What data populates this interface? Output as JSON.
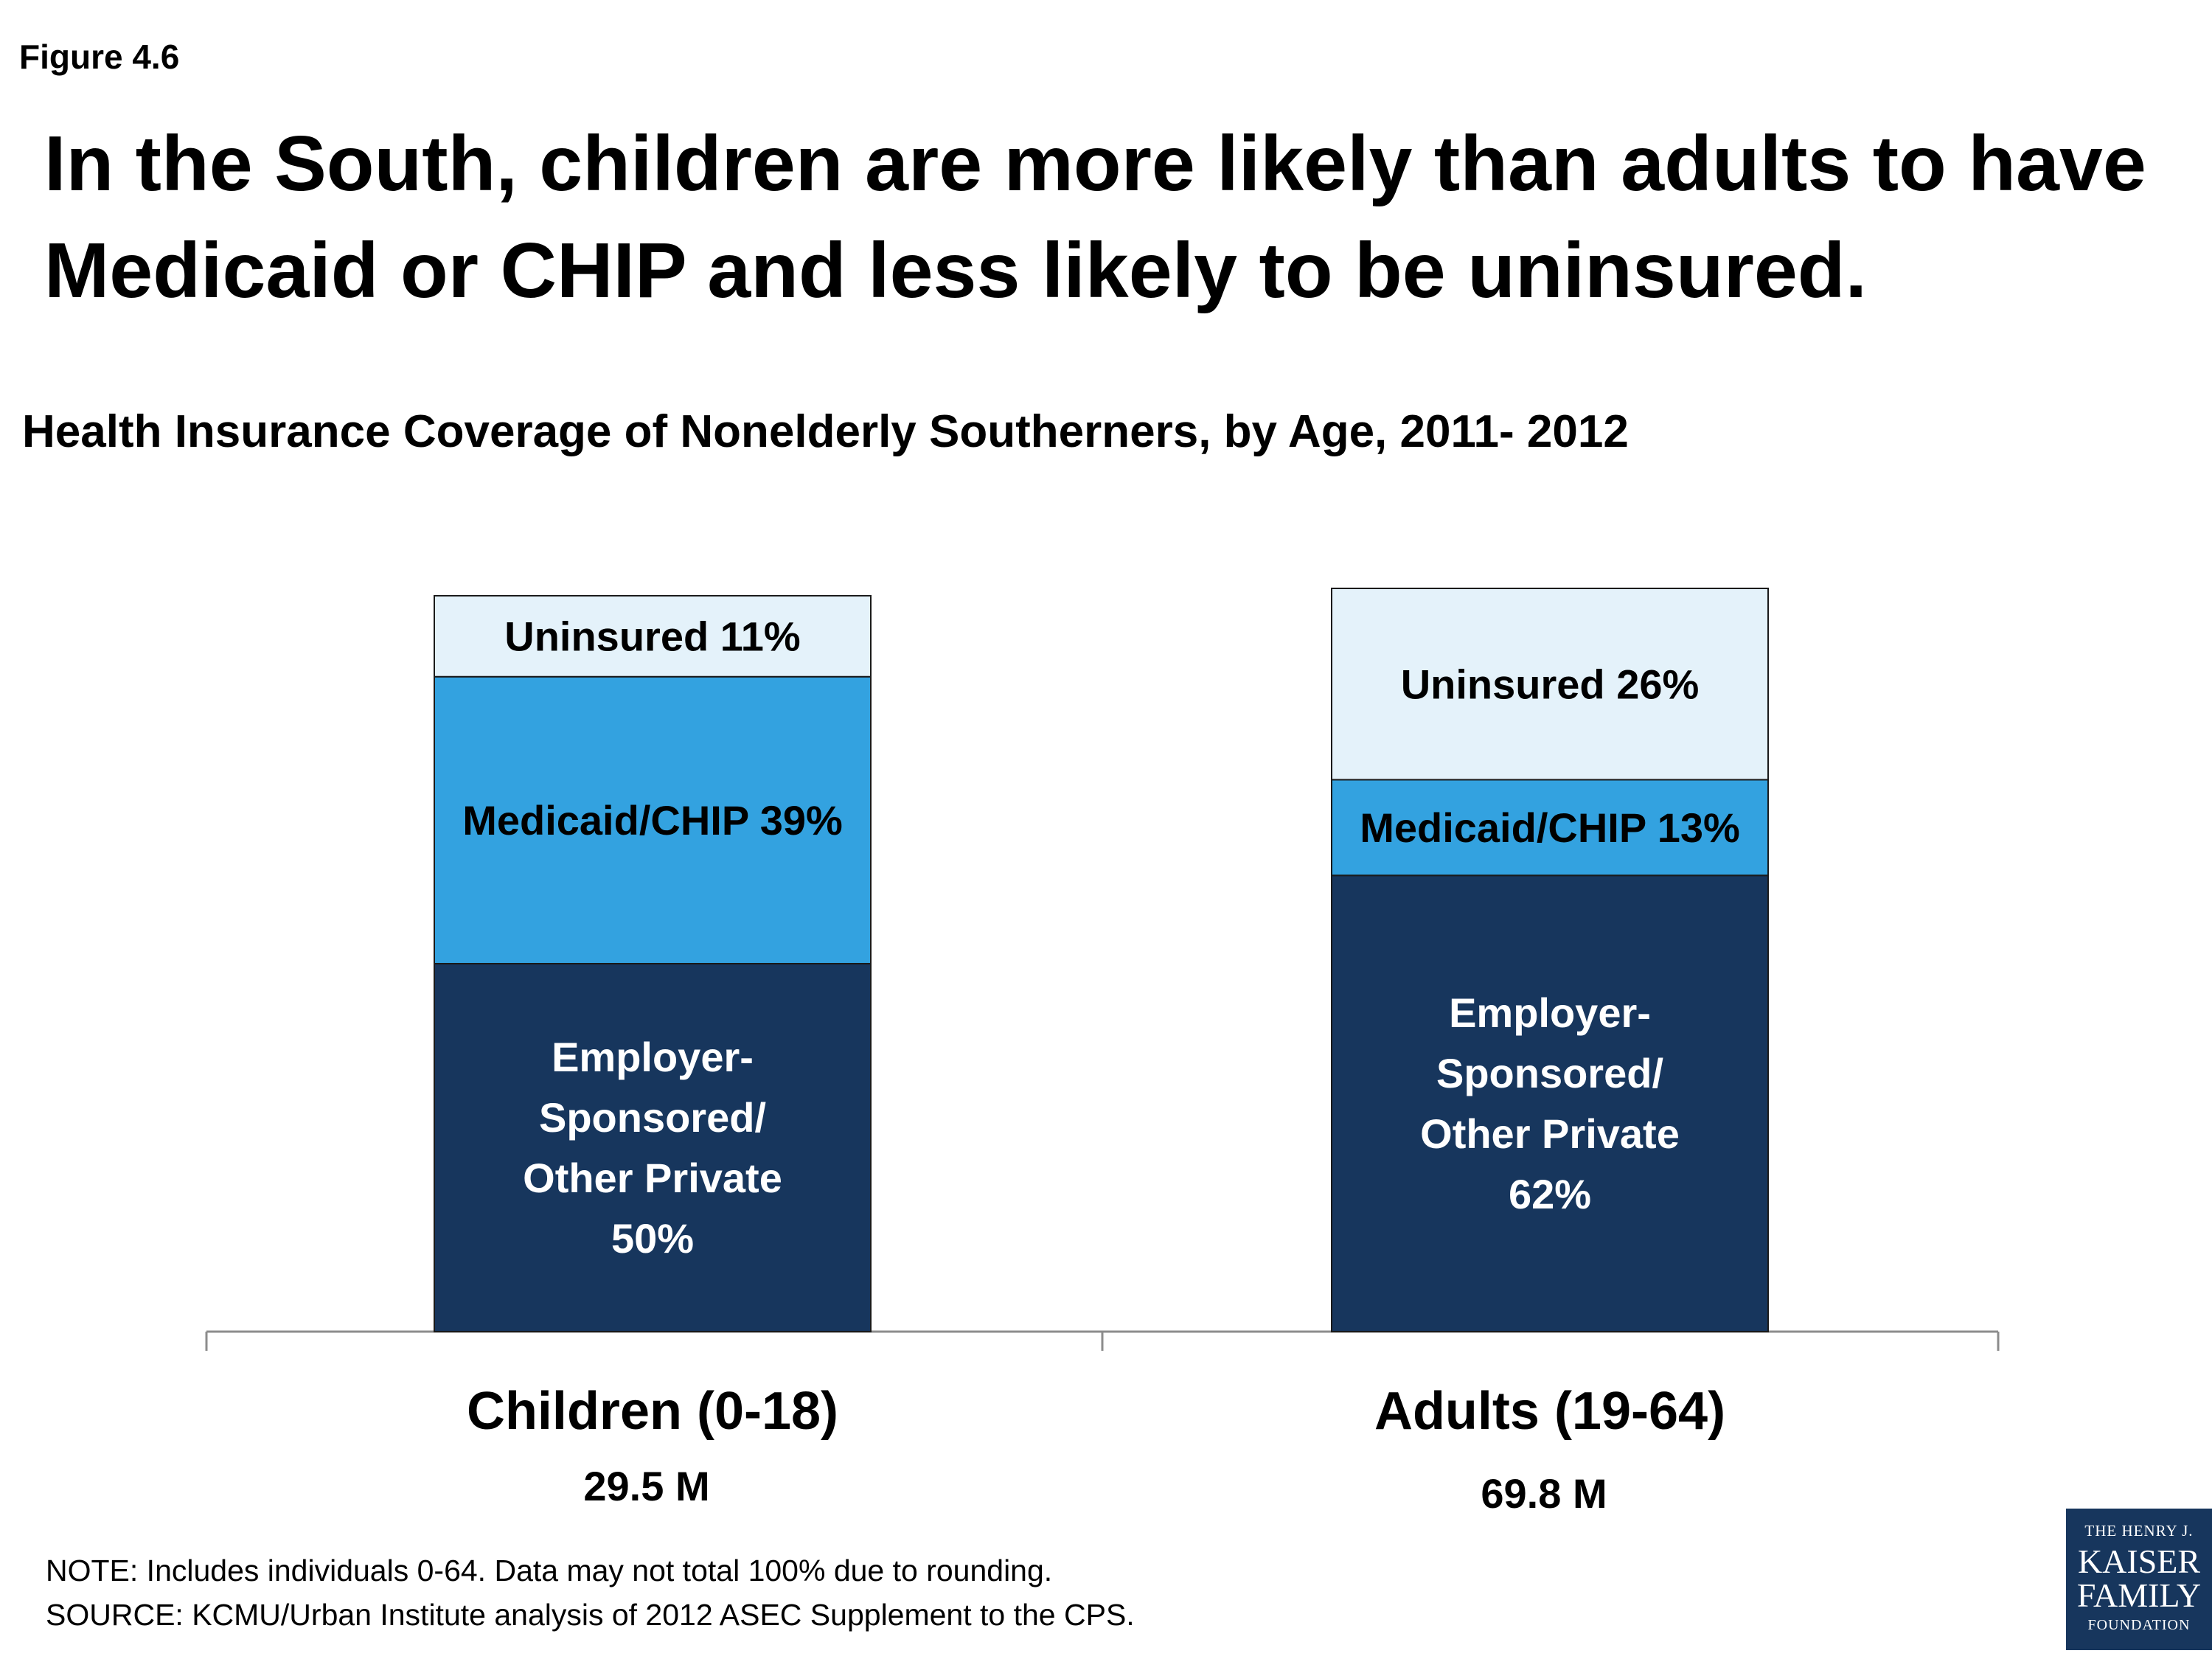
{
  "figure_label": "Figure 4.6",
  "headline": "In the South, children are more likely than adults to have Medicaid or CHIP and less likely to be uninsured.",
  "colors": {
    "employer": "#17365d",
    "medicaid": "#33a2e0",
    "uninsured": "#e4f2fa",
    "axis": "#8c8c8c"
  },
  "chart_data": {
    "type": "bar",
    "stacked": true,
    "title": "Health Insurance Coverage of Nonelderly Southerners, by Age, 2011- 2012",
    "categories": [
      "Children (0-18)",
      "Adults (19-64)"
    ],
    "category_sublabels": [
      "29.5 M",
      "69.8 M"
    ],
    "series": [
      {
        "key": "employer",
        "values": [
          50,
          62
        ],
        "labels": [
          [
            "Employer-",
            "Sponsored/",
            "Other Private",
            "50%"
          ],
          [
            "Employer-",
            "Sponsored/",
            "Other Private",
            "62%"
          ]
        ]
      },
      {
        "key": "medicaid",
        "values": [
          39,
          13
        ],
        "labels": [
          [
            "Medicaid/CHIP 39%"
          ],
          [
            "Medicaid/CHIP 13%"
          ]
        ]
      },
      {
        "key": "uninsured",
        "values": [
          11,
          26
        ],
        "labels": [
          [
            "Uninsured 11%"
          ],
          [
            "Uninsured 26%"
          ]
        ]
      }
    ],
    "ylim": [
      0,
      101
    ],
    "legend": "none",
    "grid": false
  },
  "notes": [
    "NOTE: Includes individuals 0-64. Data may not total 100% due to rounding.",
    "SOURCE: KCMU/Urban Institute analysis of 2012 ASEC Supplement to the CPS."
  ],
  "logo": {
    "line1": "THE HENRY J.",
    "line2": "KAISER",
    "line3": "FAMILY",
    "line4": "FOUNDATION"
  }
}
